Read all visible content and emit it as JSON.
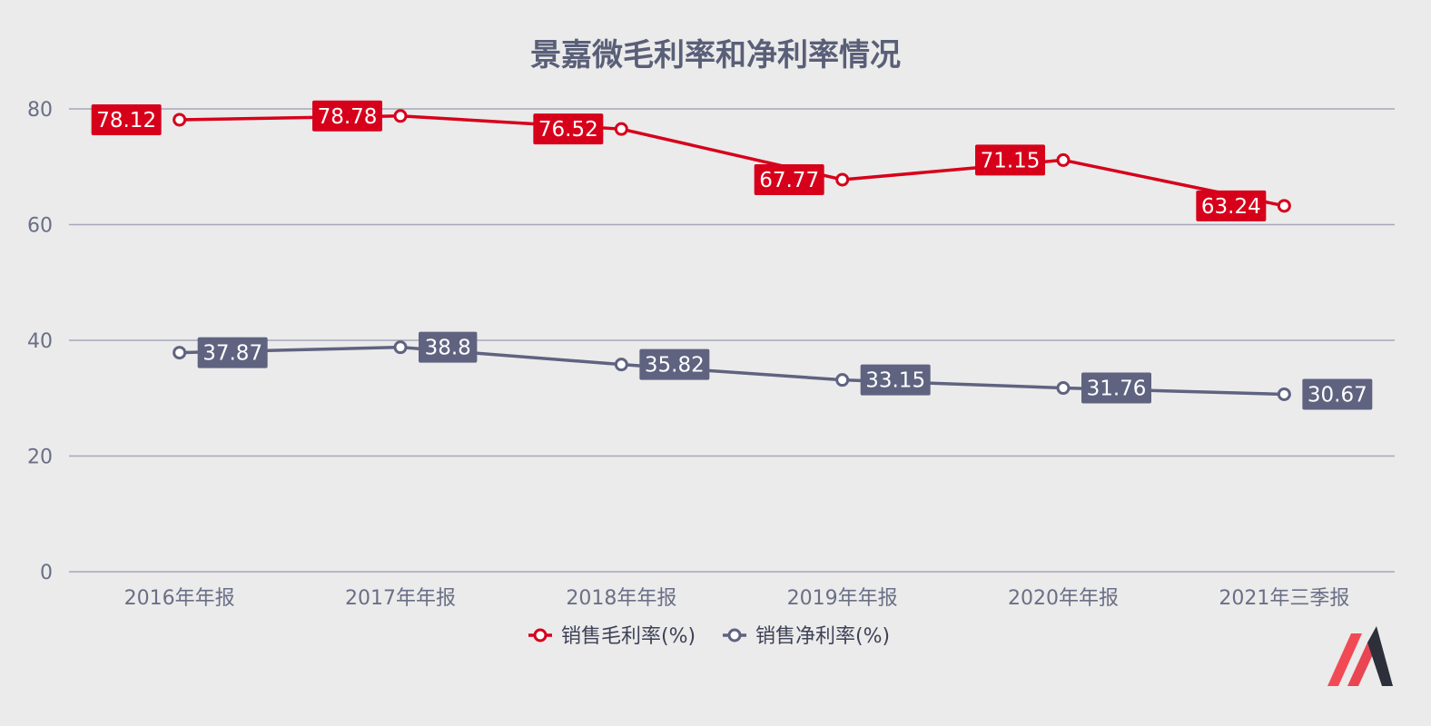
{
  "chart_data": {
    "type": "line",
    "title": "景嘉微毛利率和净利率情况",
    "categories": [
      "2016年年报",
      "2017年年报",
      "2018年年报",
      "2019年年报",
      "2020年年报",
      "2021年三季报"
    ],
    "series": [
      {
        "name": "销售毛利率(%)",
        "color": "#d7001b",
        "values": [
          78.12,
          78.78,
          76.52,
          67.77,
          71.15,
          63.24
        ],
        "labels": [
          "78.12",
          "78.78",
          "76.52",
          "67.77",
          "71.15",
          "63.24"
        ],
        "label_side": "left"
      },
      {
        "name": "销售净利率(%)",
        "color": "#5f6380",
        "values": [
          37.87,
          38.8,
          35.82,
          33.15,
          31.76,
          30.67
        ],
        "labels": [
          "37.87",
          "38.8",
          "35.82",
          "33.15",
          "31.76",
          "30.67"
        ],
        "label_side": "right"
      }
    ],
    "ylim": [
      0,
      80
    ],
    "yticks": [
      0,
      20,
      40,
      60,
      80
    ],
    "ytick_labels": [
      "0",
      "20",
      "40",
      "60",
      "80"
    ],
    "grid": true,
    "legend_position": "bottom-center",
    "xlabel": "",
    "ylabel": ""
  },
  "logo": {
    "name": "brand-logo-icon",
    "colors": [
      "#f24a55",
      "#2d2f3a"
    ]
  }
}
